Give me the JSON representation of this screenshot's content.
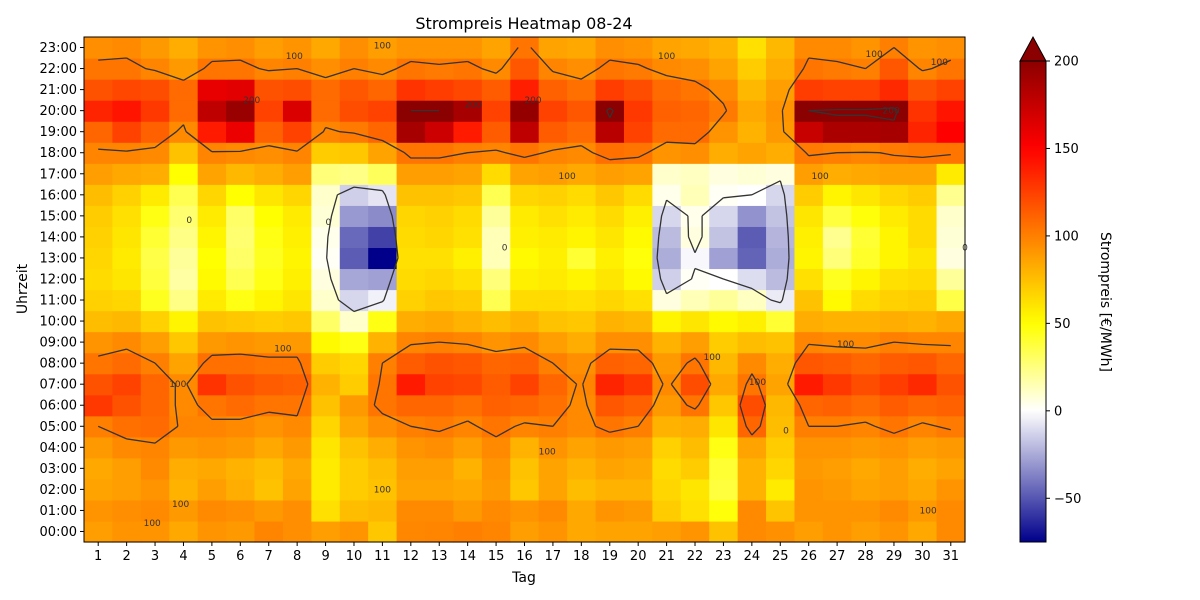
{
  "chart_data": {
    "type": "heatmap",
    "title": "Strompreis Heatmap 08-24",
    "xlabel": "Tag",
    "ylabel": "Uhrzeit",
    "colorbar_label": "Strompreis [€/MWh]",
    "colorbar_ticks": [
      "−50",
      "0",
      "50",
      "100",
      "150",
      "200"
    ],
    "colorbar_tick_values": [
      -50,
      0,
      50,
      100,
      150,
      200
    ],
    "color_range": [
      -75,
      200
    ],
    "colorbar_extend": "max",
    "colormap": [
      "#00008b",
      "#ffffff",
      "#ffff00",
      "#ff0000",
      "#8b0000"
    ],
    "days": [
      "1",
      "2",
      "3",
      "4",
      "5",
      "6",
      "7",
      "8",
      "9",
      "10",
      "11",
      "12",
      "13",
      "14",
      "15",
      "16",
      "17",
      "18",
      "19",
      "20",
      "21",
      "22",
      "23",
      "24",
      "25",
      "26",
      "27",
      "28",
      "29",
      "30",
      "31"
    ],
    "hours": [
      "00:00",
      "01:00",
      "02:00",
      "03:00",
      "04:00",
      "05:00",
      "06:00",
      "07:00",
      "08:00",
      "09:00",
      "10:00",
      "11:00",
      "12:00",
      "13:00",
      "14:00",
      "15:00",
      "16:00",
      "17:00",
      "18:00",
      "19:00",
      "20:00",
      "21:00",
      "22:00",
      "23:00"
    ],
    "contour_levels": [
      0,
      100,
      200
    ],
    "contour_labels": [
      {
        "text": "100",
        "day": 2.9,
        "hour": 0.4
      },
      {
        "text": "100",
        "day": 3.9,
        "hour": 1.3
      },
      {
        "text": "100",
        "day": 11.0,
        "hour": 2.0
      },
      {
        "text": "100",
        "day": 16.8,
        "hour": 3.8
      },
      {
        "text": "100",
        "day": 30.2,
        "hour": 1.0
      },
      {
        "text": "100",
        "day": 3.8,
        "hour": 7.0
      },
      {
        "text": "100",
        "day": 7.5,
        "hour": 8.7
      },
      {
        "text": "100",
        "day": 22.6,
        "hour": 8.3
      },
      {
        "text": "100",
        "day": 24.2,
        "hour": 7.1
      },
      {
        "text": "100",
        "day": 27.3,
        "hour": 8.9
      },
      {
        "text": "100",
        "day": 17.5,
        "hour": 16.9
      },
      {
        "text": "100",
        "day": 26.4,
        "hour": 16.9
      },
      {
        "text": "100",
        "day": 7.9,
        "hour": 22.6
      },
      {
        "text": "100",
        "day": 11.0,
        "hour": 23.1
      },
      {
        "text": "100",
        "day": 21.0,
        "hour": 22.6
      },
      {
        "text": "100",
        "day": 28.3,
        "hour": 22.7
      },
      {
        "text": "100",
        "day": 30.6,
        "hour": 22.3
      },
      {
        "text": "200",
        "day": 6.4,
        "hour": 20.5
      },
      {
        "text": "200",
        "day": 14.2,
        "hour": 20.3
      },
      {
        "text": "200",
        "day": 16.3,
        "hour": 20.5
      },
      {
        "text": "200",
        "day": 28.9,
        "hour": 20.0
      },
      {
        "text": "0",
        "day": 4.2,
        "hour": 14.8
      },
      {
        "text": "0",
        "day": 9.1,
        "hour": 14.7
      },
      {
        "text": "0",
        "day": 15.3,
        "hour": 13.5
      },
      {
        "text": "0",
        "day": 25.2,
        "hour": 4.8
      },
      {
        "text": "0",
        "day": 31.5,
        "hour": 13.5
      }
    ],
    "values": [
      [
        88,
        92,
        92,
        84,
        92,
        90,
        98,
        94,
        88,
        92,
        72,
        97,
        98,
        100,
        98,
        88,
        92,
        84,
        86,
        86,
        88,
        92,
        74,
        96,
        93,
        88,
        92,
        88,
        92,
        84,
        96
      ],
      [
        92,
        94,
        96,
        90,
        96,
        94,
        90,
        94,
        62,
        76,
        78,
        96,
        96,
        90,
        96,
        92,
        96,
        84,
        92,
        90,
        70,
        62,
        48,
        96,
        73,
        92,
        92,
        92,
        96,
        90,
        96
      ],
      [
        86,
        88,
        92,
        80,
        88,
        82,
        74,
        86,
        58,
        70,
        74,
        86,
        86,
        84,
        90,
        72,
        86,
        76,
        80,
        80,
        66,
        60,
        38,
        80,
        58,
        92,
        90,
        86,
        88,
        84,
        92
      ],
      [
        84,
        88,
        96,
        82,
        84,
        80,
        76,
        84,
        58,
        70,
        76,
        88,
        88,
        80,
        92,
        74,
        86,
        80,
        86,
        84,
        64,
        70,
        40,
        80,
        66,
        90,
        88,
        84,
        88,
        82,
        86
      ],
      [
        90,
        96,
        98,
        90,
        92,
        90,
        84,
        90,
        60,
        74,
        82,
        92,
        94,
        88,
        96,
        80,
        92,
        86,
        90,
        88,
        68,
        76,
        46,
        86,
        70,
        92,
        92,
        90,
        92,
        88,
        90
      ],
      [
        100,
        106,
        108,
        98,
        98,
        96,
        92,
        96,
        66,
        84,
        94,
        100,
        102,
        98,
        104,
        98,
        100,
        96,
        104,
        100,
        80,
        82,
        60,
        110,
        76,
        100,
        100,
        98,
        104,
        98,
        102
      ],
      [
        128,
        118,
        110,
        96,
        104,
        108,
        104,
        104,
        74,
        90,
        104,
        110,
        110,
        106,
        112,
        110,
        106,
        96,
        116,
        112,
        90,
        104,
        72,
        120,
        78,
        110,
        112,
        108,
        114,
        110,
        112
      ],
      [
        118,
        124,
        110,
        96,
        130,
        118,
        114,
        112,
        80,
        70,
        104,
        140,
        124,
        122,
        114,
        124,
        110,
        98,
        136,
        128,
        96,
        120,
        84,
        104,
        86,
        140,
        128,
        120,
        126,
        134,
        118
      ],
      [
        104,
        108,
        100,
        86,
        106,
        106,
        104,
        104,
        70,
        66,
        100,
        114,
        118,
        116,
        110,
        112,
        100,
        94,
        112,
        110,
        90,
        104,
        78,
        96,
        82,
        116,
        114,
        110,
        114,
        116,
        110
      ],
      [
        92,
        96,
        88,
        72,
        90,
        92,
        90,
        90,
        52,
        46,
        80,
        98,
        100,
        98,
        92,
        96,
        88,
        82,
        94,
        94,
        80,
        88,
        70,
        76,
        74,
        98,
        96,
        96,
        100,
        98,
        98
      ],
      [
        76,
        78,
        68,
        54,
        74,
        72,
        70,
        72,
        30,
        10,
        46,
        82,
        84,
        80,
        76,
        80,
        74,
        72,
        80,
        78,
        54,
        60,
        52,
        56,
        40,
        82,
        80,
        80,
        82,
        80,
        84
      ],
      [
        68,
        66,
        44,
        24,
        58,
        46,
        54,
        60,
        10,
        -12,
        -4,
        68,
        72,
        70,
        34,
        64,
        64,
        62,
        66,
        62,
        6,
        14,
        20,
        12,
        -6,
        74,
        52,
        64,
        68,
        70,
        36
      ],
      [
        64,
        60,
        38,
        18,
        52,
        34,
        46,
        56,
        6,
        -26,
        -28,
        64,
        66,
        62,
        26,
        56,
        58,
        54,
        60,
        52,
        -14,
        2,
        0,
        -10,
        -20,
        62,
        44,
        54,
        62,
        64,
        20
      ],
      [
        66,
        58,
        36,
        20,
        50,
        30,
        44,
        54,
        2,
        -48,
        -75,
        62,
        62,
        56,
        14,
        52,
        56,
        40,
        56,
        48,
        -24,
        -2,
        -28,
        -46,
        -24,
        54,
        26,
        42,
        54,
        60,
        6
      ],
      [
        68,
        60,
        40,
        24,
        54,
        28,
        46,
        56,
        4,
        -44,
        -56,
        64,
        66,
        62,
        14,
        56,
        58,
        54,
        60,
        52,
        -20,
        6,
        -18,
        -48,
        -22,
        56,
        22,
        40,
        54,
        64,
        8
      ],
      [
        70,
        62,
        46,
        28,
        58,
        30,
        50,
        58,
        8,
        -30,
        -34,
        66,
        68,
        64,
        20,
        58,
        62,
        58,
        64,
        56,
        -12,
        4,
        -12,
        -32,
        -18,
        60,
        38,
        48,
        58,
        64,
        10
      ],
      [
        76,
        68,
        58,
        34,
        66,
        50,
        60,
        66,
        10,
        -14,
        -8,
        74,
        74,
        72,
        34,
        66,
        68,
        64,
        72,
        64,
        4,
        14,
        2,
        0,
        -12,
        70,
        54,
        60,
        66,
        70,
        22
      ],
      [
        88,
        84,
        82,
        50,
        86,
        78,
        82,
        88,
        26,
        24,
        32,
        88,
        88,
        86,
        64,
        86,
        88,
        84,
        88,
        86,
        10,
        12,
        6,
        8,
        6,
        88,
        82,
        84,
        86,
        86,
        58
      ],
      [
        98,
        98,
        96,
        74,
        98,
        96,
        94,
        98,
        70,
        72,
        86,
        104,
        104,
        100,
        98,
        104,
        98,
        96,
        106,
        104,
        92,
        94,
        82,
        86,
        82,
        102,
        100,
        98,
        102,
        104,
        104
      ],
      [
        110,
        124,
        112,
        96,
        140,
        158,
        112,
        124,
        98,
        102,
        110,
        188,
        172,
        140,
        114,
        178,
        114,
        108,
        180,
        124,
        108,
        108,
        92,
        80,
        90,
        174,
        186,
        186,
        188,
        136,
        150
      ],
      [
        136,
        142,
        128,
        108,
        178,
        194,
        124,
        166,
        108,
        120,
        124,
        200,
        200,
        188,
        124,
        196,
        124,
        116,
        210,
        128,
        112,
        110,
        102,
        84,
        92,
        200,
        204,
        204,
        210,
        130,
        142
      ],
      [
        118,
        122,
        120,
        108,
        160,
        162,
        118,
        120,
        108,
        116,
        110,
        130,
        126,
        122,
        114,
        138,
        112,
        106,
        126,
        120,
        108,
        104,
        96,
        78,
        88,
        126,
        124,
        124,
        134,
        118,
        124
      ],
      [
        104,
        104,
        98,
        90,
        104,
        104,
        98,
        100,
        94,
        100,
        96,
        104,
        102,
        104,
        96,
        116,
        98,
        94,
        104,
        102,
        96,
        94,
        86,
        70,
        82,
        104,
        102,
        100,
        116,
        98,
        104
      ],
      [
        94,
        96,
        90,
        82,
        92,
        94,
        88,
        92,
        84,
        94,
        88,
        92,
        92,
        92,
        86,
        104,
        86,
        84,
        94,
        92,
        86,
        84,
        80,
        62,
        78,
        96,
        96,
        92,
        100,
        92,
        94
      ]
    ]
  }
}
